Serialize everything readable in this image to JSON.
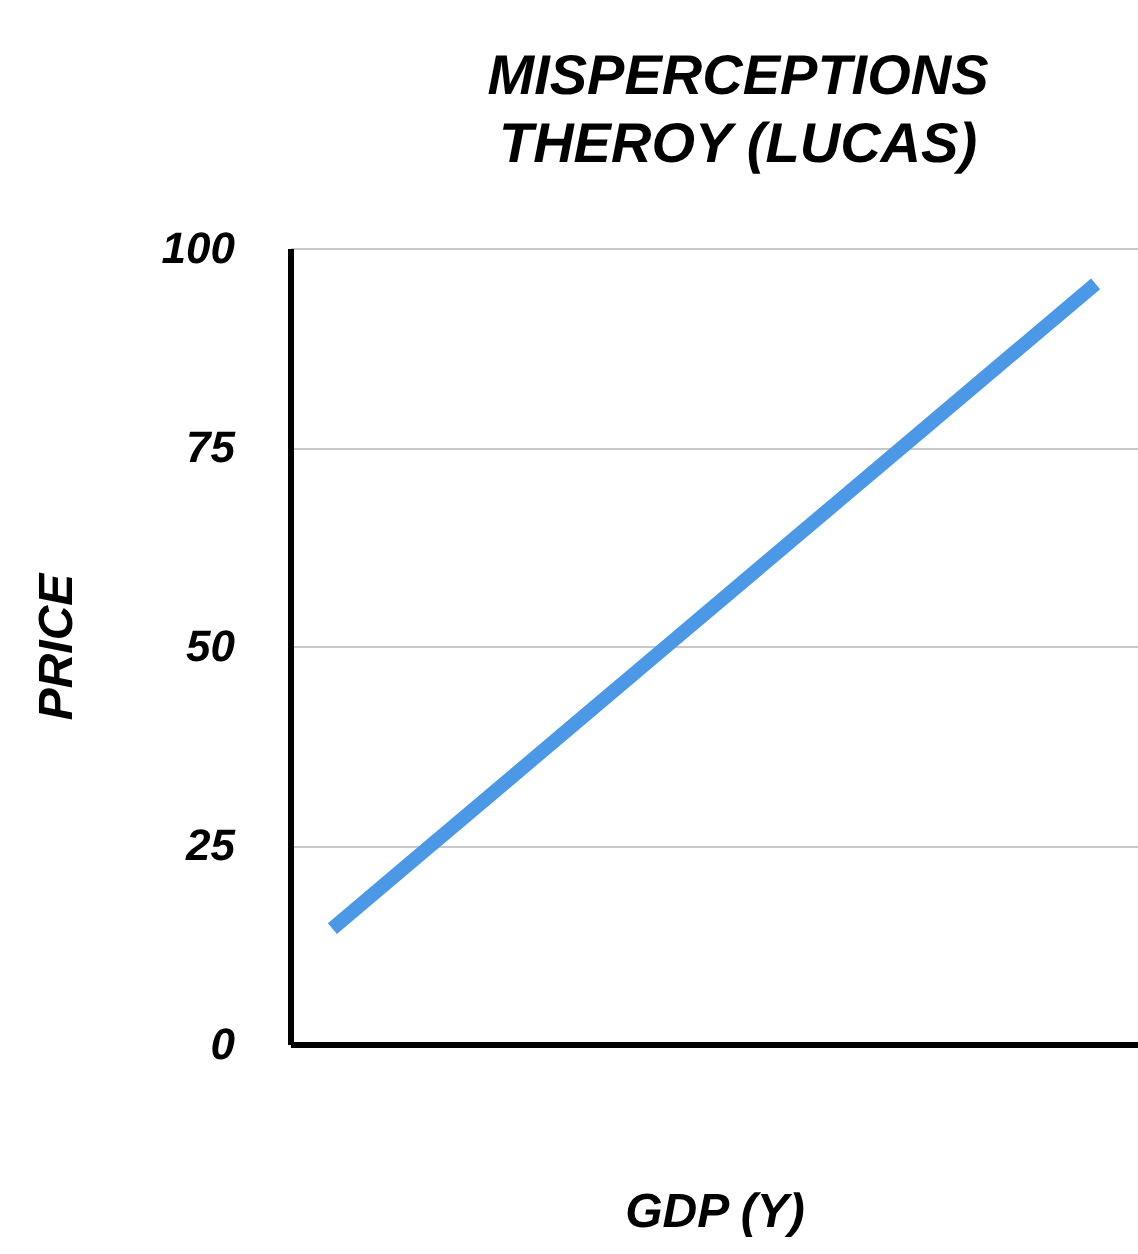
{
  "chart_data": {
    "type": "line",
    "title": "MISPERCEPTIONS\nTHEROY (LUCAS)",
    "xlabel": "GDP (Y)",
    "ylabel": "PRICE",
    "categories": [
      null,
      null,
      null,
      null,
      null,
      null,
      null,
      null,
      null,
      null
    ],
    "series": [
      {
        "color": "#4a98e6",
        "values": [
          14.5,
          23.5,
          32.5,
          41.5,
          50.5,
          59.5,
          68.5,
          77.5,
          86.5,
          95.5
        ]
      }
    ],
    "ylim": [
      0,
      100
    ],
    "yticks": [
      0,
      25,
      50,
      75,
      100
    ],
    "grid": "y",
    "tick_labels": "y",
    "marker": "none",
    "line_style": "solid"
  }
}
